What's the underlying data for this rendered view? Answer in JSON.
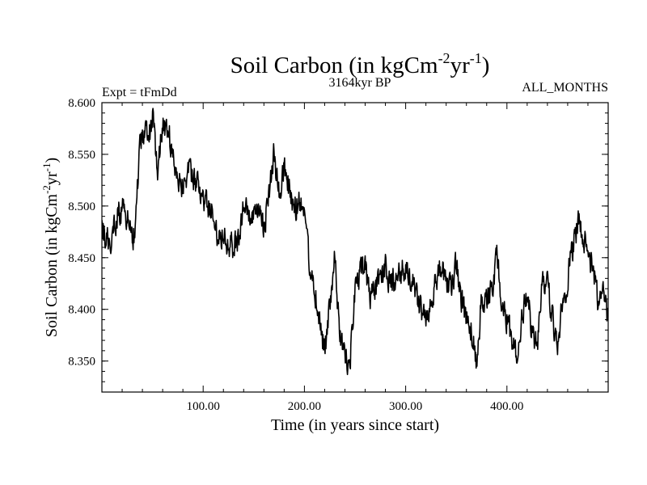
{
  "chart_data": {
    "type": "line",
    "title_main": "Soil Carbon (in kgCm",
    "title_sup1": "-2",
    "title_mid": "yr",
    "title_sup2": "-1",
    "title_close": ")",
    "subtitle": "3164kyr BP",
    "experiment": "Expt = tFmDd",
    "months": "ALL_MONTHS",
    "xlabel": "Time (in years since start)",
    "ylabel_main": "Soil Carbon (in kgCm",
    "ylabel_sup1": "-2",
    "ylabel_mid": "yr",
    "ylabel_sup2": "-1",
    "ylabel_close": ")",
    "xlim": [
      0,
      500
    ],
    "ylim": [
      8.32,
      8.6
    ],
    "x_ticks": [
      100,
      200,
      300,
      400
    ],
    "x_tick_labels": [
      "100.00",
      "200.00",
      "300.00",
      "400.00"
    ],
    "y_ticks": [
      8.35,
      8.4,
      8.45,
      8.5,
      8.55,
      8.6
    ],
    "y_tick_labels": [
      "8.350",
      "8.400",
      "8.450",
      "8.500",
      "8.550",
      "8.600"
    ],
    "series": [
      {
        "name": "Soil Carbon",
        "color": "#000000",
        "anchors_x": [
          0,
          8,
          15,
          22,
          28,
          33,
          37,
          42,
          46,
          50,
          55,
          60,
          65,
          70,
          75,
          80,
          85,
          90,
          95,
          100,
          105,
          110,
          115,
          120,
          125,
          130,
          135,
          140,
          145,
          150,
          155,
          160,
          165,
          170,
          175,
          180,
          185,
          190,
          195,
          200,
          205,
          210,
          215,
          220,
          225,
          230,
          235,
          240,
          245,
          250,
          255,
          260,
          265,
          270,
          275,
          280,
          285,
          290,
          295,
          300,
          305,
          310,
          315,
          320,
          325,
          330,
          335,
          340,
          345,
          350,
          355,
          360,
          365,
          370,
          375,
          380,
          385,
          390,
          395,
          400,
          405,
          410,
          415,
          420,
          425,
          430,
          435,
          440,
          445,
          450,
          455,
          460,
          465,
          470,
          475,
          480,
          485,
          490,
          495,
          500
        ],
        "anchors_y": [
          8.475,
          8.465,
          8.49,
          8.5,
          8.475,
          8.47,
          8.56,
          8.57,
          8.565,
          8.585,
          8.54,
          8.575,
          8.58,
          8.545,
          8.53,
          8.52,
          8.535,
          8.525,
          8.52,
          8.505,
          8.5,
          8.49,
          8.47,
          8.475,
          8.465,
          8.46,
          8.47,
          8.5,
          8.49,
          8.485,
          8.495,
          8.48,
          8.51,
          8.55,
          8.51,
          8.54,
          8.515,
          8.495,
          8.505,
          8.5,
          8.445,
          8.42,
          8.39,
          8.36,
          8.4,
          8.45,
          8.37,
          8.36,
          8.345,
          8.42,
          8.435,
          8.44,
          8.41,
          8.42,
          8.43,
          8.44,
          8.425,
          8.43,
          8.44,
          8.435,
          8.43,
          8.42,
          8.4,
          8.39,
          8.41,
          8.43,
          8.44,
          8.425,
          8.42,
          8.445,
          8.41,
          8.39,
          8.38,
          8.35,
          8.41,
          8.405,
          8.42,
          8.45,
          8.405,
          8.39,
          8.37,
          8.35,
          8.395,
          8.41,
          8.38,
          8.365,
          8.425,
          8.43,
          8.39,
          8.37,
          8.405,
          8.43,
          8.46,
          8.485,
          8.475,
          8.45,
          8.44,
          8.41,
          8.42,
          8.39
        ],
        "noise_amplitude": 0.013,
        "samples": 1200
      }
    ]
  }
}
